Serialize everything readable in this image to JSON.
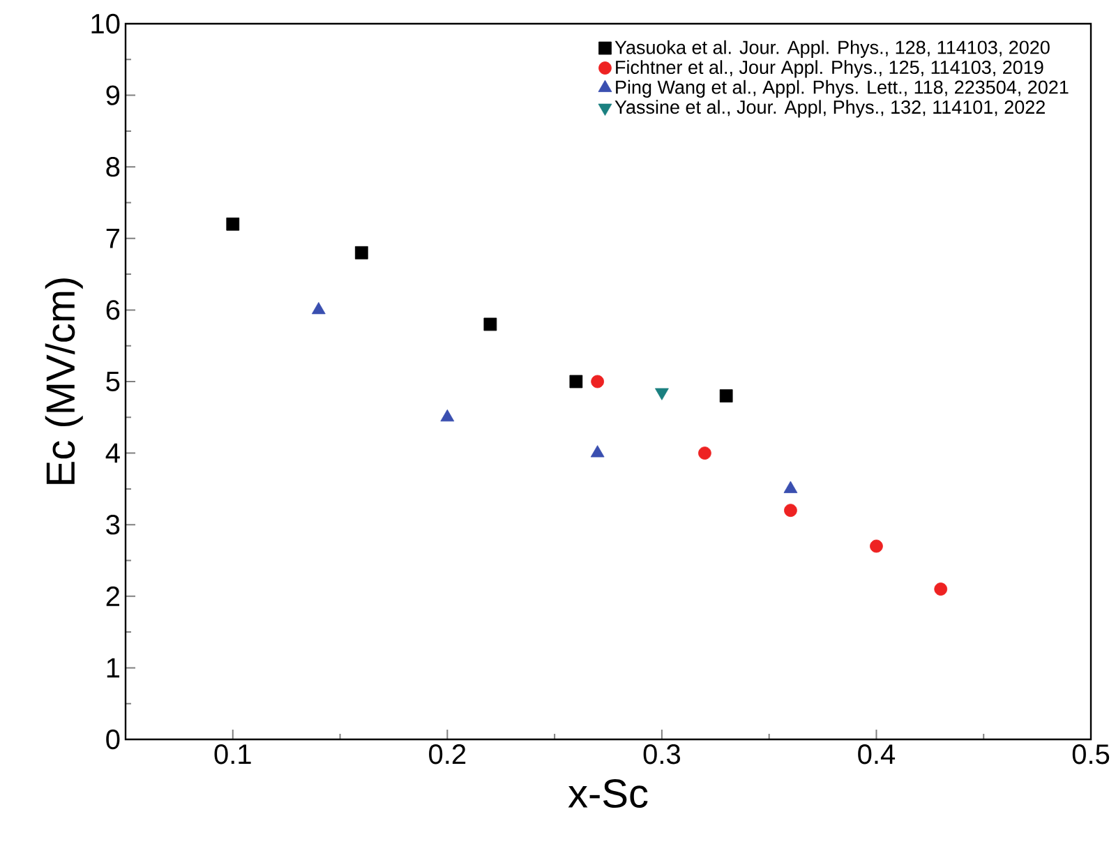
{
  "chart_data": {
    "type": "scatter",
    "xlabel": "x-Sc",
    "ylabel": "Ec (MV/cm)",
    "xlim": [
      0.05,
      0.5
    ],
    "ylim": [
      0,
      10
    ],
    "xticks": [
      0.1,
      0.2,
      0.3,
      0.4,
      0.5
    ],
    "yticks": [
      0,
      1,
      2,
      3,
      4,
      5,
      6,
      7,
      8,
      9,
      10
    ],
    "grid": false,
    "legend": "top right",
    "series": [
      {
        "name": "Yasuoka et al. Jour. Appl. Phys., 128, 114103, 2020",
        "color": "#000000",
        "marker": "square",
        "x": [
          0.1,
          0.16,
          0.22,
          0.26,
          0.33
        ],
        "values": [
          7.2,
          6.8,
          5.8,
          5.0,
          4.8
        ]
      },
      {
        "name": "Fichtner et al., Jour Appl. Phys., 125, 114103, 2019",
        "color": "#ee2222",
        "marker": "circle",
        "x": [
          0.27,
          0.32,
          0.36,
          0.4,
          0.43
        ],
        "values": [
          5.0,
          4.0,
          3.2,
          2.7,
          2.1
        ]
      },
      {
        "name": "Ping Wang  et al., Appl. Phys. Lett., 118, 223504, 2021",
        "color": "#3a4fb0",
        "marker": "triangle",
        "x": [
          0.14,
          0.2,
          0.27,
          0.36
        ],
        "values": [
          6.0,
          4.5,
          4.0,
          3.5
        ]
      },
      {
        "name": "Yassine et al., Jour. Appl, Phys., 132, 114101, 2022",
        "color": "#1a8080",
        "marker": "triangle-down",
        "x": [
          0.3
        ],
        "values": [
          4.85
        ]
      }
    ]
  }
}
